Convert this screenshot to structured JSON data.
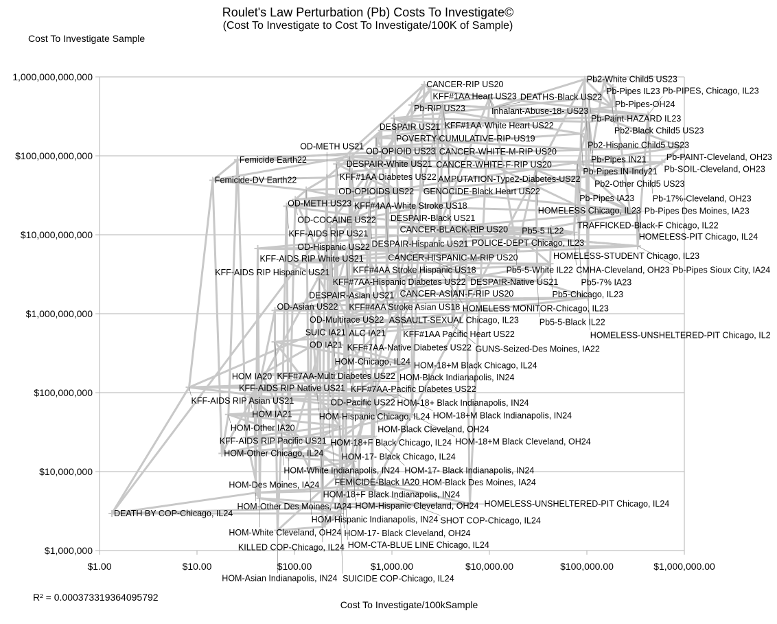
{
  "chart_data": {
    "type": "line",
    "title": "Roulet's Law Perturbation (Pb) Costs To Investigate©",
    "subtitle": "(Cost To Investigate to Cost To Investigate/100K of Sample)",
    "xlabel": "Cost To Investigate/100kSample",
    "ylabel": "Cost To Investigate Sample",
    "annotation": "R² = 0.000373319364095792",
    "x_scale": "log",
    "y_scale": "log",
    "xlim": [
      1,
      1000000
    ],
    "ylim": [
      1000000,
      1000000000000
    ],
    "x_ticks": [
      "$1.00",
      "$10.00",
      "$100.00",
      "$1,000.00",
      "$10,000.00",
      "$100,000.00",
      "$1,000,000.00"
    ],
    "y_ticks": [
      "$1,000,000",
      "$10,000,000",
      "$100,000,000",
      "$1,000,000,000",
      "$10,000,000,000",
      "$100,000,000,000",
      "1,000,000,000,000"
    ],
    "grid": "horizontal",
    "legend": "none",
    "line_color": "#c8c8c8",
    "points": [
      {
        "label": "CANCER-RIP US20",
        "x": 2150,
        "y": 800000000000.0
      },
      {
        "label": "KFF#1AA Heart US23",
        "x": 2500,
        "y": 690000000000.0
      },
      {
        "label": "Inhalant-Abuse-18- US23",
        "x": 10000,
        "y": 550000000000.0
      },
      {
        "label": "Pb-RIP US23",
        "x": 1600,
        "y": 440000000000.0
      },
      {
        "label": "KFF#1AA-White Heart US22",
        "x": 3300,
        "y": 440000000000.0
      },
      {
        "label": "DEATHS-Black US22",
        "x": 11000,
        "y": 410000000000.0
      },
      {
        "label": "Pb2-White Child5 US23",
        "x": 95000,
        "y": 930000000000.0
      },
      {
        "label": "Pb-Pipes IL23",
        "x": 150000,
        "y": 890000000000.0
      },
      {
        "label": "Pb-Pipes-OH24",
        "x": 185000,
        "y": 740000000000.0
      },
      {
        "label": "Pb-Paint-HAZARD IL23",
        "x": 105000,
        "y": 540000000000.0
      },
      {
        "label": "Pb2-Black Child5 US23",
        "x": 182000,
        "y": 420000000000.0
      },
      {
        "label": "Pb2-Hispanic Child5 US23",
        "x": 97000,
        "y": 370000000000.0
      },
      {
        "label": "Pb-PIPES, Chicago, IL23",
        "x": 425000,
        "y": 330000000000.0
      },
      {
        "label": "Pb-Pipes IN21",
        "x": 105000,
        "y": 270000000000.0
      },
      {
        "label": "Pb-Pipes IN-Indy21",
        "x": 87000,
        "y": 190000000000.0
      },
      {
        "label": "Pb2-Other Child5 US23",
        "x": 114000,
        "y": 120000000000.0
      },
      {
        "label": "Pb-PAINT-Cleveland, OH23",
        "x": 920000,
        "y": 130000000000.0
      },
      {
        "label": "Pb-SOIL-Cleveland, OH23",
        "x": 590000,
        "y": 83000000000.0
      },
      {
        "label": "Pb-17%-Cleveland, OH23",
        "x": 450000,
        "y": 64000000000.0
      },
      {
        "label": "Pb-Pipes IA23",
        "x": 80000,
        "y": 79000000000.0
      },
      {
        "label": "Pb-Pipes Des Moines, IA23",
        "x": 277000,
        "y": 20000000000.0
      },
      {
        "label": "HOMELESS Chicago, IL23",
        "x": 30000,
        "y": 67000000000.0
      },
      {
        "label": "HOMELESS-PIT Chicago, IL24",
        "x": 325000,
        "y": 19000000000.0
      },
      {
        "label": "TRAFFICKED-Black-F Chicago, IL22",
        "x": 76000,
        "y": 24000000000.0
      },
      {
        "label": "POVERTY-CUMULATIVE-RIP-US19",
        "x": 1050,
        "y": 300000000000.0
      },
      {
        "label": "CANCER-WHITE-M-RIP US20",
        "x": 2900,
        "y": 250000000000.0
      },
      {
        "label": "CANCER-WHITE-F-RIP US20",
        "x": 2700,
        "y": 210000000000.0
      },
      {
        "label": "DESPAIR US21",
        "x": 780,
        "y": 210000000000.0
      },
      {
        "label": "OD-OPIOID US23",
        "x": 690,
        "y": 170000000000.0
      },
      {
        "label": "DESPAIR-White US21",
        "x": 780,
        "y": 130000000000.0
      },
      {
        "label": "AMPUTATION-Type2-Diabetes-US22",
        "x": 3800,
        "y": 125000000000.0
      },
      {
        "label": "Femicide Earth22",
        "x": 26,
        "y": 89000000000.0
      },
      {
        "label": "Femicide-DV Earth22",
        "x": 14.5,
        "y": 49000000000.0
      },
      {
        "label": "KFF#1AA Diabetes US22",
        "x": 370,
        "y": 98000000000.0
      },
      {
        "label": "GENOCIDE-Black Heart US22",
        "x": 2000,
        "y": 79000000000.0
      },
      {
        "label": "OD-OPIOIDS US22",
        "x": 270,
        "y": 79000000000.0
      },
      {
        "label": "KFF#4AA-White Stroke US18",
        "x": 390,
        "y": 63000000000.0
      },
      {
        "label": "OD-METH US21",
        "x": 215,
        "y": 53000000000.0
      },
      {
        "label": "OD-METH US23",
        "x": 132,
        "y": 37000000000.0
      },
      {
        "label": "DESPAIR-Black US21",
        "x": 920,
        "y": 40000000000.0
      },
      {
        "label": "CANCER-BLACK-RIP US20",
        "x": 1150,
        "y": 35000000000.0
      },
      {
        "label": "OD-COCAINE US22",
        "x": 102,
        "y": 28000000000.0
      },
      {
        "label": "DESPAIR-Hispanic US21",
        "x": 590,
        "y": 28000000000.0
      },
      {
        "label": "KFF-AIDS RIP US21",
        "x": 83,
        "y": 23000000000.0
      },
      {
        "label": "CANCER-HISPANIC-M-RIP US20",
        "x": 870,
        "y": 23000000000.0
      },
      {
        "label": "KFF#4AA Stroke Hispanic US18",
        "x": 380,
        "y": 16000000000.0
      },
      {
        "label": "OD-Hispanic US22",
        "x": 270,
        "y": 14000000000.0
      },
      {
        "label": "KFF#7AA-Hispanic Diabetes US22",
        "x": 235,
        "y": 12500000000.0
      },
      {
        "label": "POLICE-DEPT Chicago, IL23",
        "x": 5700,
        "y": 13000000000.0
      },
      {
        "label": "HOMELESS-STUDENT Chicago, IL23",
        "x": 43000,
        "y": 12000000000.0
      },
      {
        "label": "CMHA-Cleveland, OH23",
        "x": 74000,
        "y": 10700000000.0
      },
      {
        "label": "CANCER-ASIAN-F-RIP US20",
        "x": 1150,
        "y": 9800000000.0
      },
      {
        "label": "Pb5-5 IL22",
        "x": 20500,
        "y": 9100000000.0
      },
      {
        "label": "Pb5-7% IA23",
        "x": 83000,
        "y": 8300000000.0
      },
      {
        "label": "Pb-Pipes Sioux City, IA24",
        "x": 332000,
        "y": 7200000000.0
      },
      {
        "label": "KFF-AIDS RIP White US21",
        "x": 42,
        "y": 6700000000.0
      },
      {
        "label": "DESPAIR-Native US21",
        "x": 1550,
        "y": 6200000000.0
      },
      {
        "label": "Pb5-5-White IL22",
        "x": 19000,
        "y": 6500000000.0
      },
      {
        "label": "KFF#4AA Stroke Asian US18",
        "x": 345,
        "y": 4900000000.0
      },
      {
        "label": "KFF-AIDS RIP Hispanic US21",
        "x": 84,
        "y": 4500000000.0
      },
      {
        "label": "Pb5-Chicago, IL23",
        "x": 42000,
        "y": 4300000000.0
      },
      {
        "label": "HOMELESS MONITOR-Chicago, IL23",
        "x": 3100,
        "y": 3500000000.0
      },
      {
        "label": "DESPAIR-Asian US21",
        "x": 180,
        "y": 2800000000.0
      },
      {
        "label": "Pb5-5-Black IL22",
        "x": 31000,
        "y": 2600000000.0
      },
      {
        "label": "ASSAULT-SEXUAL Chicago, IL23",
        "x": 890,
        "y": 1500000000.0
      },
      {
        "label": "HOMELESS-UNSHELTERED-PIT Chicago, IL2",
        "x": 103000,
        "y": 1600000000.0
      },
      {
        "label": "OD-Multirace US22",
        "x": 150,
        "y": 1250000000.0
      },
      {
        "label": "OD-Asian US22",
        "x": 63,
        "y": 1100000000.0
      },
      {
        "label": "KFF#1AA Pacific Heart US22",
        "x": 1240,
        "y": 1100000000.0
      },
      {
        "label": "KFF#7AA-Native Diabetes US22",
        "x": 330,
        "y": 910000000.0
      },
      {
        "label": "ALC IA21",
        "x": 345,
        "y": 840000000.0
      },
      {
        "label": "GUNS-Seized-Des Moines, IA22",
        "x": 4200,
        "y": 720000000.0
      },
      {
        "label": "SUIC IA21",
        "x": 200,
        "y": 640000000.0
      },
      {
        "label": "HOM-Chicago, IL24",
        "x": 246,
        "y": 550000000.0
      },
      {
        "label": "OD IA21",
        "x": 182,
        "y": 490000000.0
      },
      {
        "label": "KFF#7AA-Multi Diabetes US22",
        "x": 63,
        "y": 440000000.0
      },
      {
        "label": "KFF#7AA-Pacific Diabetes US22",
        "x": 360,
        "y": 300000000.0
      },
      {
        "label": "HOM-18+M Black Chicago, IL24",
        "x": 1600,
        "y": 220000000.0
      },
      {
        "label": "OD-Pacific US22",
        "x": 222,
        "y": 185000000.0
      },
      {
        "label": "KFF-AIDS RIP Native US21",
        "x": 46,
        "y": 170000000.0
      },
      {
        "label": "HOM-Black Indianapolis, IN24",
        "x": 635,
        "y": 140000000.0
      },
      {
        "label": "KFF-AIDS RIP Asian US21",
        "x": 8.3,
        "y": 117000000.0
      },
      {
        "label": "HOM-18+ Black Indianapolis, IN24",
        "x": 660,
        "y": 110000000.0
      },
      {
        "label": "HOM IA20",
        "x": 39,
        "y": 107000000.0
      },
      {
        "label": "HOM-Hispanic Chicago, IL24",
        "x": 170,
        "y": 100000000.0
      },
      {
        "label": "HOM-18+M Black Indianapolis, IN24",
        "x": 1150,
        "y": 93000000.0
      },
      {
        "label": "HOM IA21",
        "x": 35,
        "y": 88000000.0
      },
      {
        "label": "HOM-Black Cleveland, OH24",
        "x": 680,
        "y": 76000000.0
      },
      {
        "label": "HOM-18+F Black Chicago, IL24",
        "x": 222,
        "y": 63000000.0
      },
      {
        "label": "HOM-18+M Black Cleveland, OH24",
        "x": 1600,
        "y": 53000000.0
      },
      {
        "label": "HOM-Other IA20",
        "x": 21,
        "y": 53000000.0
      },
      {
        "label": "HOM-17- Black Chicago, IL24",
        "x": 290,
        "y": 38000000.0
      },
      {
        "label": "HOM-White Indianapolis, IN24",
        "x": 74,
        "y": 31000000.0
      },
      {
        "label": "KFF-AIDS RIP Pacific US21",
        "x": 32,
        "y": 27000000.0
      },
      {
        "label": "HOM-17- Black Indianapolis, IN24",
        "x": 650,
        "y": 28000000.0
      },
      {
        "label": "FEMICIDE-Black IA20",
        "x": 246,
        "y": 22000000.0
      },
      {
        "label": "HOM-Other Chicago, IL24",
        "x": 18,
        "y": 17000000.0
      },
      {
        "label": "HOM-18+F Black Indianapolis, IN24",
        "x": 187,
        "y": 17000000.0
      },
      {
        "label": "HOM-Des Moines, IA24",
        "x": 87,
        "y": 15000000.0
      },
      {
        "label": "HOM-Hispanic Cleveland, OH24",
        "x": 400,
        "y": 13500000.0
      },
      {
        "label": "HOM-Hispanic Indianapolis, IN24",
        "x": 142,
        "y": 11000000.0
      },
      {
        "label": "HOM-17- Black Cleveland, OH24",
        "x": 308,
        "y": 10000000.0
      },
      {
        "label": "HOM-Black Des Moines, IA24",
        "x": 450,
        "y": 6600000.0
      },
      {
        "label": "SHOT COP-Chicago, IL24",
        "x": 630,
        "y": 5900000.0
      },
      {
        "label": "HOM-Other Des Moines, IA24",
        "x": 40,
        "y": 5400000.0
      },
      {
        "label": "HOM-White Cleveland, OH24",
        "x": 44,
        "y": 4600000.0
      },
      {
        "label": "HOM-CTA-BLUE LINE Chicago, IL24",
        "x": 336,
        "y": 3900000.0
      },
      {
        "label": "HOMELESS-UNSHELTERED-PIT Chicago, IL24",
        "x": 6300,
        "y": 3900000.0
      },
      {
        "label": "DEATH BY COP-Chicago, IL24",
        "x": 1.34,
        "y": 2950000.0
      },
      {
        "label": "SUICIDE COP-Chicago, IL24",
        "x": 297,
        "y": 2950000.0
      },
      {
        "label": "KILLED COP-Chicago, IL24",
        "x": 194,
        "y": 2000000.0
      },
      {
        "label": "HOM-Asian Indianapolis, IN24",
        "x": 67,
        "y": 1800000.0
      }
    ]
  }
}
